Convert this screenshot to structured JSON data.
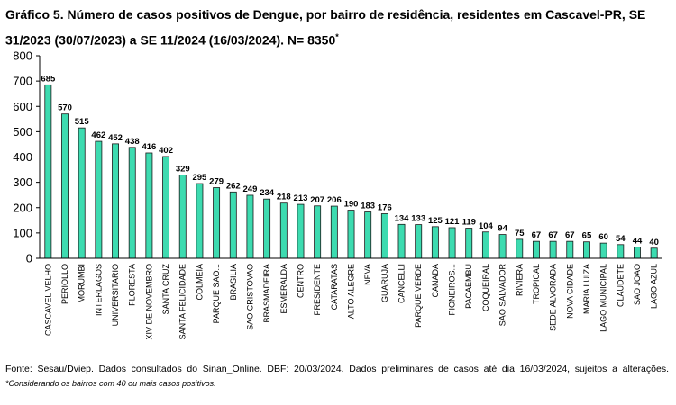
{
  "title": "Gráfico 5. Número de casos positivos de Dengue, por bairro de residência, residentes em Cascavel-PR, SE 31/2023 (30/07/2023) a SE 11/2024 (16/03/2024). N= 8350",
  "title_marker": "*",
  "footer": {
    "source": "Fonte: Sesau/Dviep. Dados consultados do Sinan_Online. DBF: 20/03/2024. Dados preliminares de casos até dia 16/03/2024, sujeitos a alterações.",
    "note": "*Considerando os bairros com 40 ou mais casos positivos."
  },
  "colors": {
    "bar_fill": "#3ddbb0",
    "bar_stroke": "#1a1a1a",
    "axis": "#000000"
  },
  "chart_data": {
    "type": "bar",
    "categories": [
      "CASCAVEL VELHO",
      "PERIOLLO",
      "MORUMBI",
      "INTERLAGOS",
      "UNIVERSITARIO",
      "FLORESTA",
      "XIV DE NOVEMBRO",
      "SANTA CRUZ",
      "SANTA FELICIDADE",
      "COLMEIA",
      "PARQUE SAO...",
      "BRASILIA",
      "SAO CRISTOVAO",
      "BRASMADEIRA",
      "ESMERALDA",
      "CENTRO",
      "PRESIDENTE",
      "CATARATAS",
      "ALTO ALEGRE",
      "NEVA",
      "GUARUJA",
      "CANCELLI",
      "PARQUE VERDE",
      "CANADA",
      "PIONEIROS...",
      "PACAEMBU",
      "COQUEIRAL",
      "SAO SALVADOR",
      "RIVIERA",
      "TROPICAL",
      "SEDE ALVORADA",
      "NOVA CIDADE",
      "MARIA LUIZA",
      "LAGO MUNICIPAL",
      "CLAUDETE",
      "SAO JOAO",
      "LAGO AZUL"
    ],
    "values": [
      685,
      570,
      515,
      462,
      452,
      438,
      416,
      402,
      329,
      295,
      279,
      262,
      249,
      234,
      218,
      213,
      207,
      206,
      190,
      183,
      176,
      134,
      133,
      125,
      121,
      119,
      104,
      94,
      75,
      67,
      67,
      67,
      65,
      60,
      54,
      44,
      40
    ],
    "yticks": [
      0,
      100,
      200,
      300,
      400,
      500,
      600,
      700,
      800
    ],
    "ylim": [
      0,
      800
    ],
    "grid": false,
    "legend": "none"
  }
}
